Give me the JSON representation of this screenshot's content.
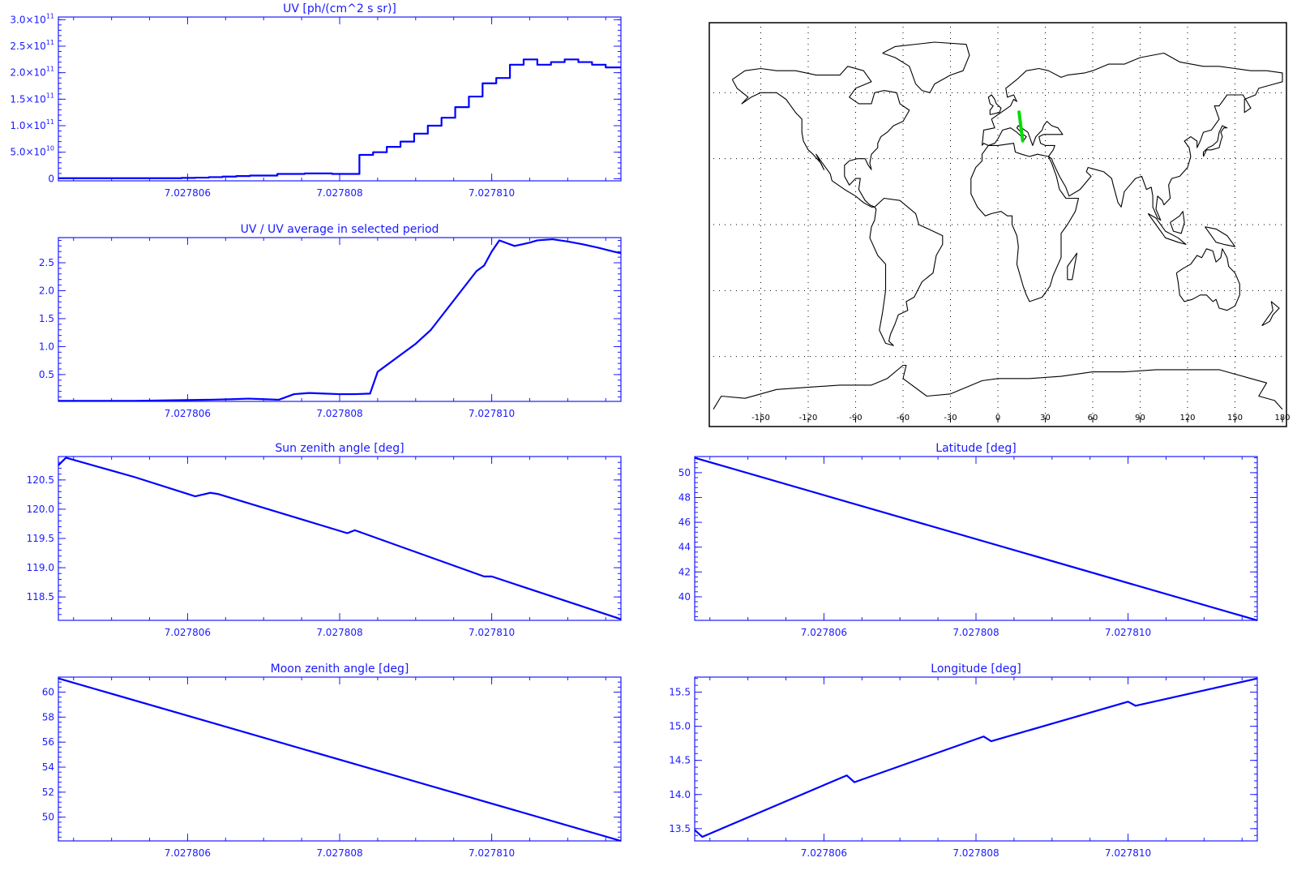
{
  "colors": {
    "axis": "#1a1aff",
    "line": "#0000ff",
    "track": "#00dd00",
    "coast": "#000000",
    "grid": "#000000"
  },
  "charts": [
    {
      "id": "uv",
      "title": "UV [ph/(cm^2 s sr)]",
      "type": "step",
      "xlim": [
        7.0278043,
        7.0278117
      ],
      "xticks": [
        {
          "v": 7.027806,
          "label": "7.027806"
        },
        {
          "v": 7.027808,
          "label": "7.027808"
        },
        {
          "v": 7.02781,
          "label": "7.027810"
        }
      ],
      "ylim": [
        -4000000000.0,
        305000000000.0
      ],
      "yticks": [
        {
          "v": 0,
          "label": "0",
          "mant": "",
          "exp": ""
        },
        {
          "v": 50000000000.0,
          "label": "",
          "mant": "5.0×10",
          "exp": "10"
        },
        {
          "v": 100000000000.0,
          "label": "",
          "mant": "1.0×10",
          "exp": "11"
        },
        {
          "v": 150000000000.0,
          "label": "",
          "mant": "1.5×10",
          "exp": "11"
        },
        {
          "v": 200000000000.0,
          "label": "",
          "mant": "2.0×10",
          "exp": "11"
        },
        {
          "v": 250000000000.0,
          "label": "",
          "mant": "2.5×10",
          "exp": "11"
        },
        {
          "v": 300000000000.0,
          "label": "",
          "mant": "3.0×10",
          "exp": "11"
        }
      ],
      "x": [
        7.0278043,
        7.02780448,
        7.02780466,
        7.02780484,
        7.02780502,
        7.0278052,
        7.02780538,
        7.02780556,
        7.02780574,
        7.02780592,
        7.0278061,
        7.02780628,
        7.02780646,
        7.02780664,
        7.02780682,
        7.027807,
        7.02780718,
        7.02780736,
        7.02780754,
        7.02780772,
        7.0278079,
        7.02780808,
        7.02780826,
        7.02780844,
        7.02780862,
        7.0278088,
        7.02780898,
        7.02780916,
        7.02780934,
        7.02780952,
        7.0278097,
        7.02780988,
        7.02781006,
        7.02781024,
        7.02781042,
        7.0278106,
        7.02781078,
        7.02781096,
        7.02781114,
        7.02781132,
        7.0278115
      ],
      "values": [
        1000000000.0,
        1000000000.0,
        1000000000.0,
        1000000000.0,
        1000000000.0,
        1000000000.0,
        1000000000.0,
        1000000000.0,
        1000000000.0,
        1500000000.0,
        2000000000.0,
        3000000000.0,
        4000000000.0,
        5000000000.0,
        6000000000.0,
        6000000000.0,
        9000000000.0,
        9000000000.0,
        10000000000.0,
        10000000000.0,
        9000000000.0,
        9000000000.0,
        45000000000.0,
        50000000000.0,
        60000000000.0,
        70000000000.0,
        85000000000.0,
        100000000000.0,
        115000000000.0,
        135000000000.0,
        155000000000.0,
        180000000000.0,
        190000000000.0,
        215000000000.0,
        225000000000.0,
        215000000000.0,
        220000000000.0,
        225000000000.0,
        220000000000.0,
        215000000000.0,
        210000000000.0
      ]
    },
    {
      "id": "uv-ratio",
      "title": "UV / UV average in selected period",
      "type": "line",
      "xlim": [
        7.0278043,
        7.0278117
      ],
      "xticks": [
        {
          "v": 7.027806,
          "label": "7.027806"
        },
        {
          "v": 7.027808,
          "label": "7.027808"
        },
        {
          "v": 7.02781,
          "label": "7.027810"
        }
      ],
      "ylim": [
        0.02,
        2.95
      ],
      "yticks": [
        {
          "v": 0.5,
          "label": "0.5"
        },
        {
          "v": 1.0,
          "label": "1.0"
        },
        {
          "v": 1.5,
          "label": "1.5"
        },
        {
          "v": 2.0,
          "label": "2.0"
        },
        {
          "v": 2.5,
          "label": "2.5"
        }
      ],
      "x": [
        7.0278043,
        7.0278048,
        7.0278053,
        7.0278058,
        7.0278063,
        7.0278066,
        7.0278068,
        7.027807,
        7.0278072,
        7.0278074,
        7.0278076,
        7.0278078,
        7.027808,
        7.0278082,
        7.0278084,
        7.0278085,
        7.0278086,
        7.0278088,
        7.027809,
        7.0278092,
        7.0278094,
        7.0278096,
        7.0278098,
        7.0278099,
        7.02781,
        7.0278101,
        7.0278102,
        7.0278103,
        7.0278104,
        7.0278105,
        7.0278106,
        7.0278108,
        7.027811,
        7.0278112,
        7.0278114,
        7.0278116,
        7.0278117
      ],
      "values": [
        0.03,
        0.03,
        0.03,
        0.04,
        0.05,
        0.06,
        0.07,
        0.06,
        0.05,
        0.15,
        0.17,
        0.16,
        0.15,
        0.15,
        0.16,
        0.55,
        0.65,
        0.85,
        1.05,
        1.3,
        1.65,
        2.0,
        2.35,
        2.45,
        2.7,
        2.9,
        2.85,
        2.8,
        2.83,
        2.86,
        2.9,
        2.92,
        2.88,
        2.83,
        2.77,
        2.7,
        2.67
      ]
    },
    {
      "id": "sun-zenith",
      "title": "Sun zenith angle [deg]",
      "type": "line",
      "xlim": [
        7.0278043,
        7.0278117
      ],
      "xticks": [
        {
          "v": 7.027806,
          "label": "7.027806"
        },
        {
          "v": 7.027808,
          "label": "7.027808"
        },
        {
          "v": 7.02781,
          "label": "7.027810"
        }
      ],
      "ylim": [
        118.1,
        120.9
      ],
      "yticks": [
        {
          "v": 118.5,
          "label": "118.5"
        },
        {
          "v": 119.0,
          "label": "119.0"
        },
        {
          "v": 119.5,
          "label": "119.5"
        },
        {
          "v": 120.0,
          "label": "120.0"
        },
        {
          "v": 120.5,
          "label": "120.5"
        }
      ],
      "x": [
        7.0278043,
        7.0278044,
        7.0278053,
        7.0278061,
        7.0278063,
        7.0278064,
        7.0278081,
        7.0278082,
        7.0278099,
        7.02781,
        7.0278117
      ],
      "values": [
        120.75,
        120.88,
        120.55,
        120.22,
        120.28,
        120.26,
        119.59,
        119.64,
        118.85,
        118.85,
        118.12
      ]
    },
    {
      "id": "moon-zenith",
      "title": "Moon zenith angle [deg]",
      "type": "line",
      "xlim": [
        7.0278043,
        7.0278117
      ],
      "xticks": [
        {
          "v": 7.027806,
          "label": "7.027806"
        },
        {
          "v": 7.027808,
          "label": "7.027808"
        },
        {
          "v": 7.02781,
          "label": "7.027810"
        }
      ],
      "ylim": [
        48.1,
        61.2
      ],
      "yticks": [
        {
          "v": 50,
          "label": "50"
        },
        {
          "v": 52,
          "label": "52"
        },
        {
          "v": 54,
          "label": "54"
        },
        {
          "v": 56,
          "label": "56"
        },
        {
          "v": 58,
          "label": "58"
        },
        {
          "v": 60,
          "label": "60"
        }
      ],
      "x": [
        7.0278043,
        7.0278117
      ],
      "values": [
        61.1,
        48.1
      ]
    },
    {
      "id": "latitude",
      "title": "Latitude [deg]",
      "type": "line",
      "xlim": [
        7.0278043,
        7.0278117
      ],
      "xticks": [
        {
          "v": 7.027806,
          "label": "7.027806"
        },
        {
          "v": 7.027808,
          "label": "7.027808"
        },
        {
          "v": 7.02781,
          "label": "7.027810"
        }
      ],
      "ylim": [
        38.1,
        51.3
      ],
      "yticks": [
        {
          "v": 40,
          "label": "40"
        },
        {
          "v": 42,
          "label": "42"
        },
        {
          "v": 44,
          "label": "44"
        },
        {
          "v": 46,
          "label": "46"
        },
        {
          "v": 48,
          "label": "48"
        },
        {
          "v": 50,
          "label": "50"
        }
      ],
      "x": [
        7.0278043,
        7.0278117
      ],
      "values": [
        51.2,
        38.1
      ]
    },
    {
      "id": "longitude",
      "title": "Longitude [deg]",
      "type": "line",
      "xlim": [
        7.0278043,
        7.0278117
      ],
      "xticks": [
        {
          "v": 7.027806,
          "label": "7.027806"
        },
        {
          "v": 7.027808,
          "label": "7.027808"
        },
        {
          "v": 7.02781,
          "label": "7.027810"
        }
      ],
      "ylim": [
        13.32,
        15.72
      ],
      "yticks": [
        {
          "v": 13.5,
          "label": "13.5"
        },
        {
          "v": 14.0,
          "label": "14.0"
        },
        {
          "v": 14.5,
          "label": "14.5"
        },
        {
          "v": 15.0,
          "label": "15.0"
        },
        {
          "v": 15.5,
          "label": "15.5"
        }
      ],
      "x": [
        7.0278043,
        7.0278044,
        7.0278063,
        7.0278064,
        7.0278081,
        7.0278082,
        7.02781,
        7.0278101,
        7.0278117
      ],
      "values": [
        13.48,
        13.38,
        14.28,
        14.18,
        14.85,
        14.78,
        15.36,
        15.3,
        15.7
      ]
    }
  ],
  "map": {
    "xticks": [
      "-150",
      "-120",
      "-90",
      "-60",
      "-30",
      "0",
      "30",
      "60",
      "90",
      "120",
      "150",
      "180"
    ],
    "lon_range": [
      -180,
      180
    ],
    "lat_range": [
      -90,
      90
    ],
    "track": {
      "lon": [
        13.4,
        15.7
      ],
      "lat": [
        51.2,
        38.1
      ]
    }
  }
}
